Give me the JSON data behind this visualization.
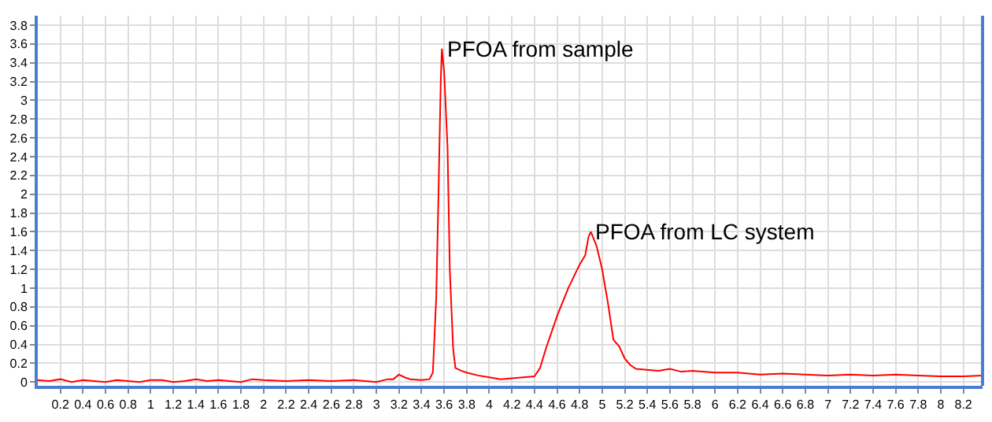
{
  "chart_data": {
    "type": "line",
    "grid": true,
    "marker": "none",
    "line_style": "solid",
    "xlim": [
      0,
      8.37
    ],
    "ylim": [
      -0.04,
      3.9
    ],
    "xticks": [
      0.2,
      0.4,
      0.6,
      0.8,
      1,
      1.2,
      1.4,
      1.6,
      1.8,
      2,
      2.2,
      2.4,
      2.6,
      2.8,
      3,
      3.2,
      3.4,
      3.6,
      3.8,
      4,
      4.2,
      4.4,
      4.6,
      4.8,
      5,
      5.2,
      5.4,
      5.6,
      5.8,
      6,
      6.2,
      6.4,
      6.6,
      6.8,
      7,
      7.2,
      7.4,
      7.6,
      7.8,
      8,
      8.2
    ],
    "yticks": [
      0,
      0.2,
      0.4,
      0.6,
      0.8,
      1,
      1.2,
      1.4,
      1.6,
      1.8,
      2,
      2.2,
      2.4,
      2.6,
      2.8,
      3,
      3.2,
      3.4,
      3.6,
      3.8
    ],
    "x": [
      0,
      0.1,
      0.2,
      0.3,
      0.4,
      0.5,
      0.6,
      0.7,
      0.8,
      0.9,
      1.0,
      1.1,
      1.2,
      1.3,
      1.4,
      1.5,
      1.6,
      1.7,
      1.8,
      1.9,
      2.0,
      2.2,
      2.4,
      2.6,
      2.8,
      3.0,
      3.1,
      3.15,
      3.2,
      3.25,
      3.3,
      3.4,
      3.47,
      3.5,
      3.53,
      3.55,
      3.57,
      3.58,
      3.6,
      3.63,
      3.65,
      3.68,
      3.7,
      3.75,
      3.8,
      3.9,
      4.0,
      4.1,
      4.2,
      4.3,
      4.4,
      4.45,
      4.5,
      4.6,
      4.7,
      4.8,
      4.85,
      4.88,
      4.9,
      4.95,
      5.0,
      5.05,
      5.1,
      5.15,
      5.2,
      5.25,
      5.3,
      5.4,
      5.5,
      5.6,
      5.7,
      5.8,
      6.0,
      6.2,
      6.4,
      6.6,
      6.8,
      7.0,
      7.2,
      7.4,
      7.6,
      7.8,
      8.0,
      8.2,
      8.37
    ],
    "series": [
      {
        "color": "#ff0000",
        "values": [
          0.02,
          0.01,
          0.03,
          0.0,
          0.02,
          0.01,
          0.0,
          0.02,
          0.01,
          0.0,
          0.02,
          0.02,
          0.0,
          0.01,
          0.03,
          0.01,
          0.02,
          0.01,
          0.0,
          0.03,
          0.02,
          0.01,
          0.02,
          0.01,
          0.02,
          0.0,
          0.03,
          0.03,
          0.08,
          0.05,
          0.03,
          0.02,
          0.03,
          0.1,
          0.9,
          2.0,
          3.2,
          3.55,
          3.3,
          2.5,
          1.2,
          0.35,
          0.15,
          0.12,
          0.1,
          0.07,
          0.05,
          0.03,
          0.04,
          0.05,
          0.06,
          0.15,
          0.35,
          0.7,
          1.0,
          1.25,
          1.35,
          1.55,
          1.6,
          1.45,
          1.2,
          0.85,
          0.45,
          0.38,
          0.25,
          0.18,
          0.14,
          0.13,
          0.12,
          0.14,
          0.11,
          0.12,
          0.1,
          0.1,
          0.08,
          0.09,
          0.08,
          0.07,
          0.08,
          0.07,
          0.08,
          0.07,
          0.06,
          0.06,
          0.07
        ]
      }
    ],
    "annotations": [
      {
        "text": "PFOA from sample",
        "x": 3.58,
        "y": 3.55
      },
      {
        "text": "PFOA from LC system",
        "x": 4.9,
        "y": 1.6
      }
    ]
  }
}
